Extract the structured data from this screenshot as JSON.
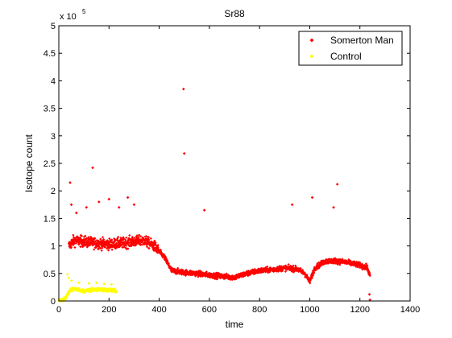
{
  "chart_data": {
    "type": "scatter",
    "title": "Sr88",
    "xlabel": "time",
    "ylabel": "Isotope count",
    "y_multiplier": {
      "base": "x 10",
      "exponent": "5"
    },
    "xlim": [
      0,
      1400
    ],
    "ylim": [
      0,
      500000
    ],
    "x_ticks": [
      0,
      200,
      400,
      600,
      800,
      1000,
      1200,
      1400
    ],
    "x_tick_labels": [
      "0",
      "200",
      "400",
      "600",
      "800",
      "1000",
      "1200",
      "1400"
    ],
    "y_ticks": [
      0,
      50000,
      100000,
      150000,
      200000,
      250000,
      300000,
      350000,
      400000,
      450000,
      500000
    ],
    "y_tick_labels": [
      "0",
      "0.5",
      "1",
      "1.5",
      "2",
      "2.5",
      "3",
      "3.5",
      "4",
      "4.5",
      "5"
    ],
    "grid": false,
    "legend_position": "top-right",
    "series": [
      {
        "name": "Somerton Man",
        "color": "#ff0000",
        "marker": "diamond",
        "trend": [
          [
            40,
            100000
          ],
          [
            60,
            110000
          ],
          [
            100,
            108000
          ],
          [
            150,
            105000
          ],
          [
            200,
            103000
          ],
          [
            250,
            105000
          ],
          [
            300,
            108000
          ],
          [
            340,
            110000
          ],
          [
            380,
            100000
          ],
          [
            420,
            80000
          ],
          [
            450,
            55000
          ],
          [
            500,
            52000
          ],
          [
            550,
            50000
          ],
          [
            600,
            47000
          ],
          [
            650,
            45000
          ],
          [
            700,
            43000
          ],
          [
            750,
            50000
          ],
          [
            800,
            55000
          ],
          [
            850,
            57000
          ],
          [
            900,
            60000
          ],
          [
            950,
            58000
          ],
          [
            980,
            50000
          ],
          [
            1000,
            35000
          ],
          [
            1020,
            60000
          ],
          [
            1060,
            72000
          ],
          [
            1100,
            73000
          ],
          [
            1150,
            70000
          ],
          [
            1200,
            65000
          ],
          [
            1230,
            60000
          ],
          [
            1240,
            45000
          ]
        ],
        "outliers": [
          [
            45,
            215000
          ],
          [
            50,
            175000
          ],
          [
            70,
            160000
          ],
          [
            110,
            170000
          ],
          [
            135,
            242000
          ],
          [
            160,
            180000
          ],
          [
            200,
            185000
          ],
          [
            240,
            170000
          ],
          [
            275,
            188000
          ],
          [
            300,
            175000
          ],
          [
            497,
            385000
          ],
          [
            500,
            268000
          ],
          [
            580,
            165000
          ],
          [
            930,
            175000
          ],
          [
            1010,
            188000
          ],
          [
            1095,
            170000
          ],
          [
            1110,
            212000
          ],
          [
            1240,
            2000
          ],
          [
            1238,
            12000
          ]
        ]
      },
      {
        "name": "Control",
        "color": "#ffff00",
        "marker": "diamond",
        "trend": [
          [
            0,
            1000
          ],
          [
            20,
            2000
          ],
          [
            30,
            8000
          ],
          [
            45,
            20000
          ],
          [
            60,
            22000
          ],
          [
            80,
            20000
          ],
          [
            100,
            18000
          ],
          [
            130,
            20000
          ],
          [
            160,
            21000
          ],
          [
            190,
            20000
          ],
          [
            220,
            19000
          ],
          [
            228,
            18000
          ]
        ],
        "outliers": [
          [
            35,
            48000
          ],
          [
            40,
            42000
          ],
          [
            50,
            37000
          ],
          [
            80,
            33000
          ],
          [
            120,
            32000
          ],
          [
            150,
            33000
          ],
          [
            180,
            31000
          ],
          [
            210,
            30000
          ]
        ]
      }
    ]
  }
}
